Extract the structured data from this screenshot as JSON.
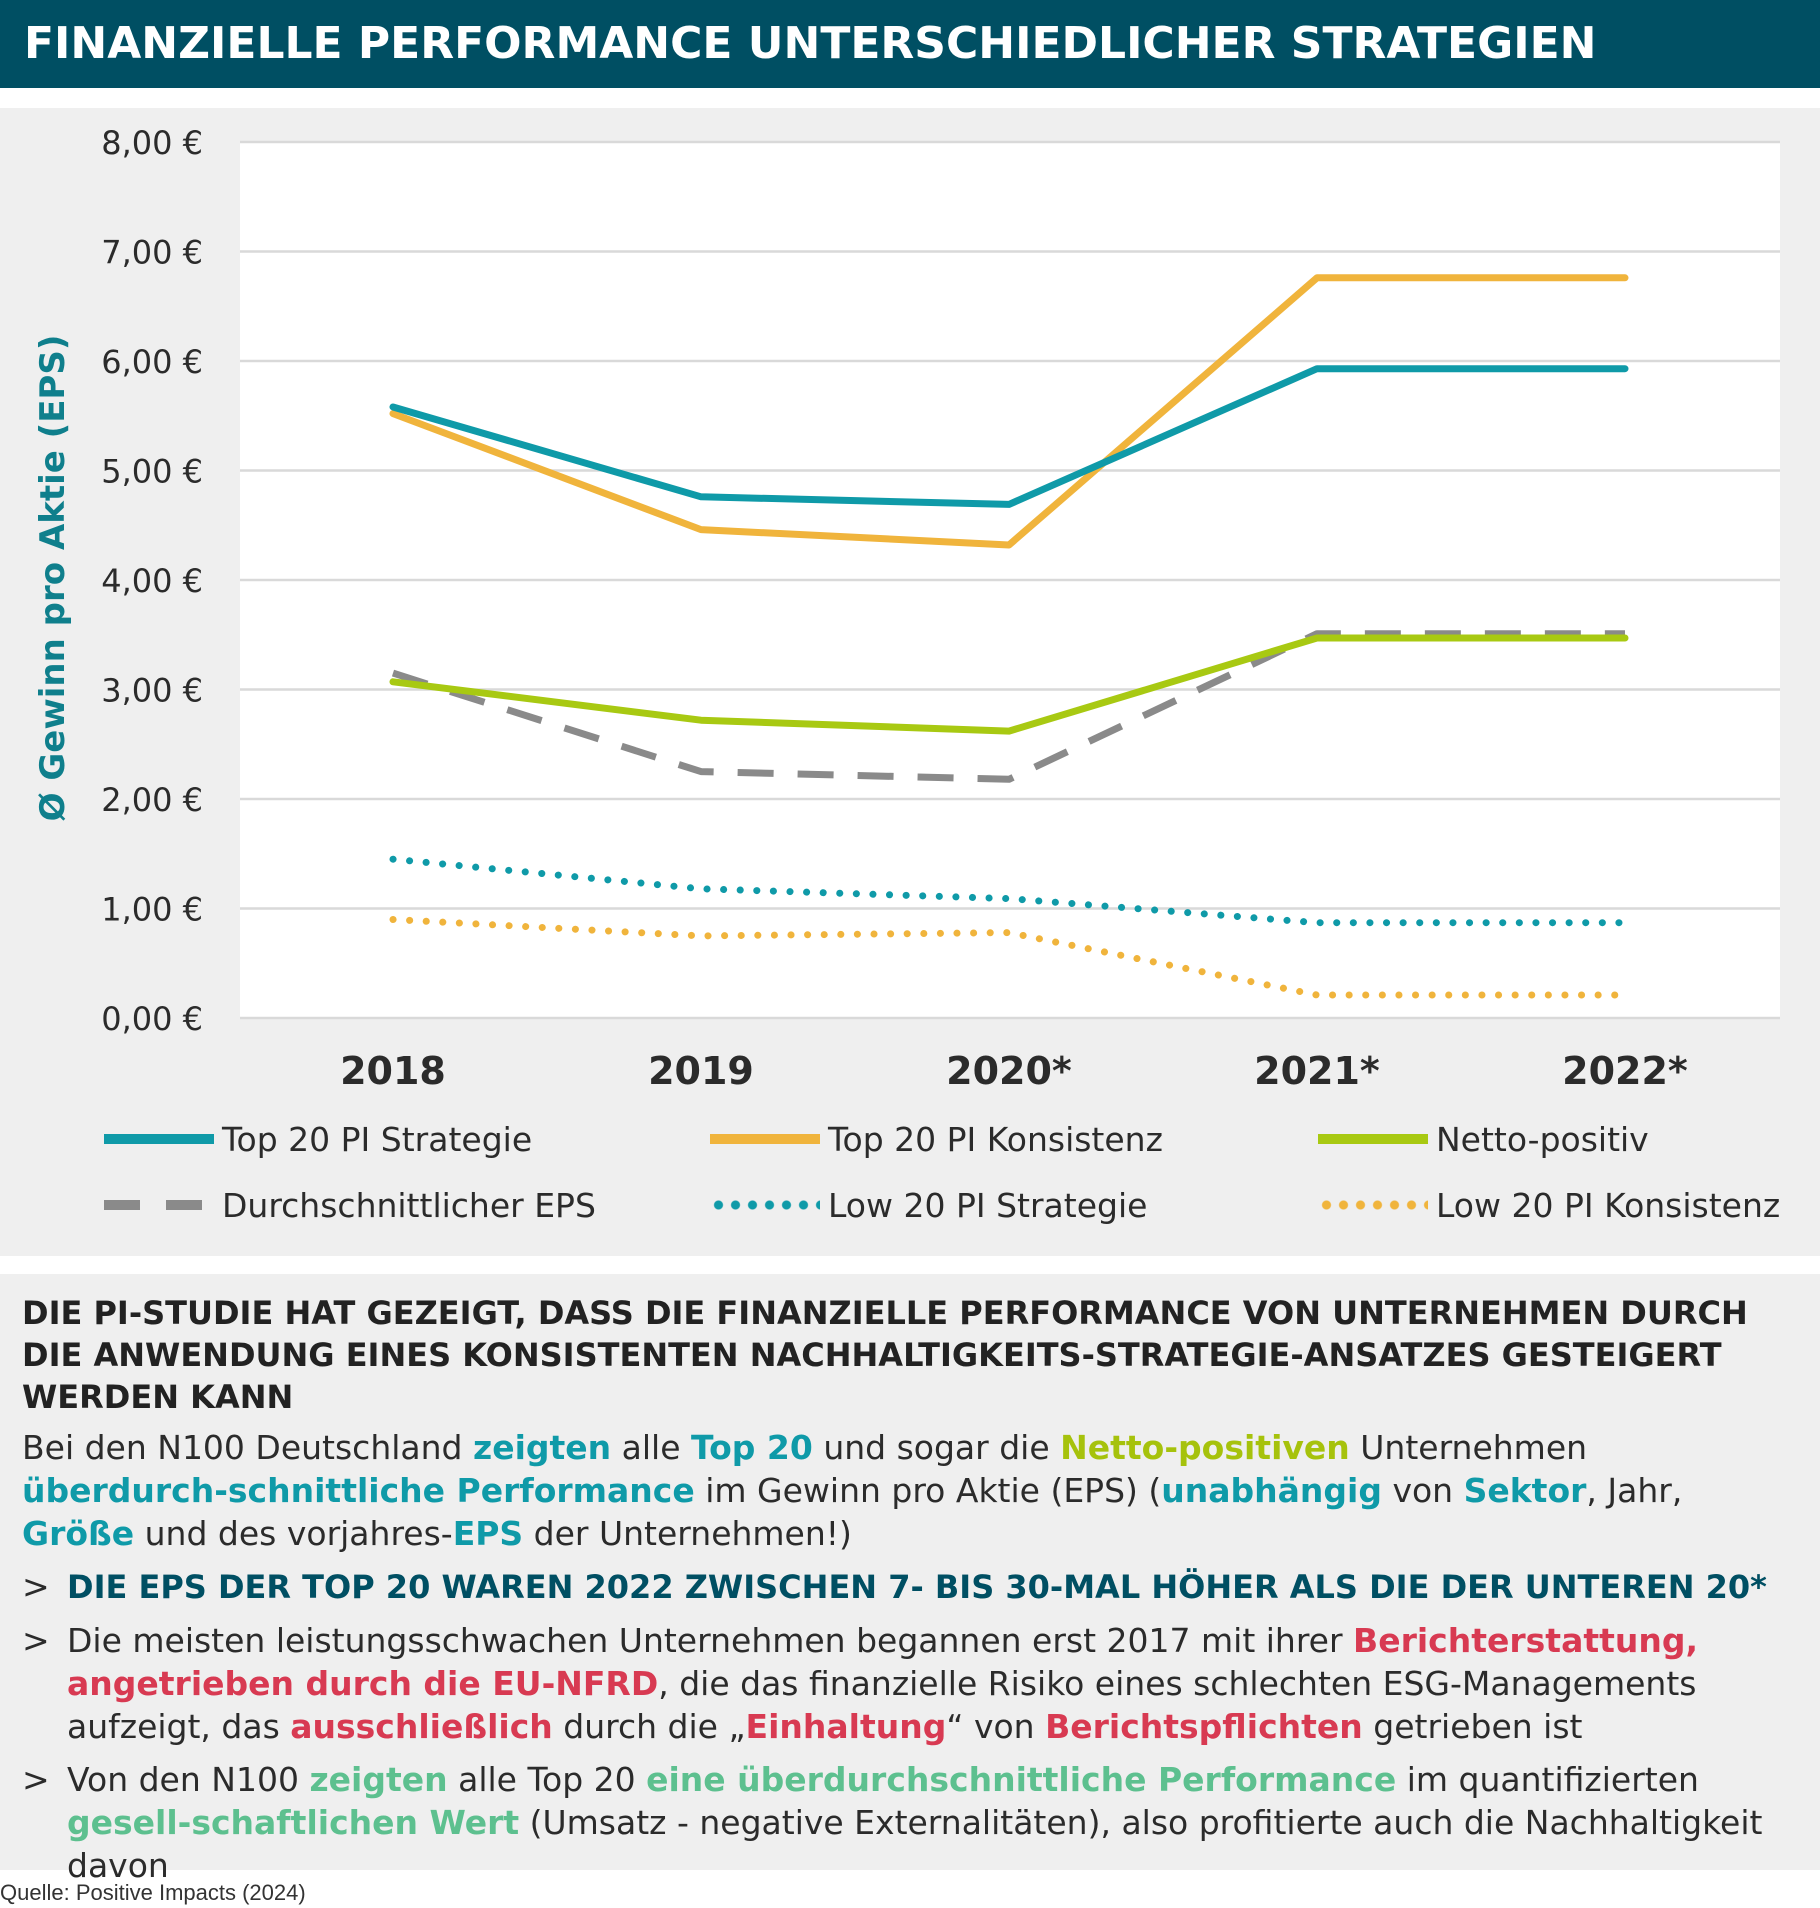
{
  "header": {
    "title": "FINANZIELLE PERFORMANCE UNTERSCHIEDLICHER STRATEGIEN"
  },
  "chart_data": {
    "type": "line",
    "title": "",
    "xlabel": "",
    "ylabel": "Ø Gewinn pro Aktie (EPS)",
    "categories": [
      "2018",
      "2019",
      "2020*",
      "2021*",
      "2022*"
    ],
    "ylim": [
      0,
      8
    ],
    "y_ticks": [
      0,
      1,
      2,
      3,
      4,
      5,
      6,
      7,
      8
    ],
    "y_tick_labels": [
      "0,00 €",
      "1,00 €",
      "2,00 €",
      "3,00 €",
      "4,00 €",
      "5,00 €",
      "6,00 €",
      "7,00 €",
      "8,00 €"
    ],
    "grid": true,
    "legend_position": "bottom",
    "series": [
      {
        "name": "Top 20 PI Strategie",
        "values": [
          5.58,
          4.76,
          4.69,
          5.93,
          5.93
        ],
        "color": "#0f9aa8",
        "style": "solid"
      },
      {
        "name": "Top 20 PI Konsistenz",
        "values": [
          5.52,
          4.46,
          4.32,
          6.76,
          6.76
        ],
        "color": "#f0b43c",
        "style": "solid"
      },
      {
        "name": "Netto-positiv",
        "values": [
          3.07,
          2.72,
          2.62,
          3.47,
          3.47
        ],
        "color": "#a8c912",
        "style": "solid"
      },
      {
        "name": "Durchschnittlicher EPS",
        "values": [
          3.15,
          2.25,
          2.18,
          3.51,
          3.51
        ],
        "color": "#8a8a8a",
        "style": "dashed"
      },
      {
        "name": "Low 20 PI Strategie",
        "values": [
          1.45,
          1.18,
          1.09,
          0.87,
          0.87
        ],
        "color": "#0f9aa8",
        "style": "dotted"
      },
      {
        "name": "Low 20 PI Konsistenz",
        "values": [
          0.9,
          0.75,
          0.78,
          0.21,
          0.21
        ],
        "color": "#f0b43c",
        "style": "dotted"
      }
    ]
  },
  "info": {
    "heading": "DIE PI-STUDIE HAT GEZEIGT, DASS DIE FINANZIELLE PERFORMANCE VON UNTERNEHMEN DURCH DIE ANWENDUNG EINES KONSISTENTEN NACHHALTIGKEITS-STRATEGIE-ANSATZES GESTEIGERT WERDEN KANN",
    "para": {
      "t1": "Bei den N100 Deutschland ",
      "h1": "zeigten",
      "t2": " alle ",
      "h2": "Top 20",
      "t3": " und sogar die ",
      "h3": "Netto-positiven",
      "t4": " Unternehmen ",
      "h4": "überdurch-schnittliche Performance",
      "t5": " im Gewinn pro Aktie (EPS) (",
      "h5": "unabhängig",
      "t6": " von ",
      "h6": "Sektor",
      "t7": ", Jahr, ",
      "h7": "Größe",
      "t8": " und des vorjahres-",
      "h8": "EPS",
      "t9": " der Unternehmen!)"
    },
    "bullet_marker": ">",
    "b1": "DIE EPS DER TOP 20 WAREN 2022 ZWISCHEN 7- BIS 30-MAL HÖHER ALS DIE DER UNTEREN 20*",
    "b2": {
      "t1": "Die meisten leistungsschwachen Unternehmen begannen erst 2017 mit ihrer ",
      "h1": "Berichterstattung, angetrieben durch die EU-NFRD",
      "t2": ", die das finanzielle Risiko eines schlechten ESG-Managements aufzeigt, das ",
      "h2": "ausschließlich",
      "t3": " durch die „",
      "h3": "Einhaltung",
      "t4": "“ von ",
      "h4": "Berichtspflichten",
      "t5": " getrieben ist"
    },
    "b3": {
      "t1": "Von den N100 ",
      "h1": "zeigten",
      "t2": " alle Top 20 ",
      "h2": "eine überdurchschnittliche Performance",
      "t3": " im quantifizierten ",
      "h3": "gesell-schaftlichen Wert",
      "t4": " (Umsatz - negative Externalitäten), also profitierte auch die Nachhaltigkeit davon"
    }
  },
  "source": "Quelle: Positive Impacts (2024)"
}
